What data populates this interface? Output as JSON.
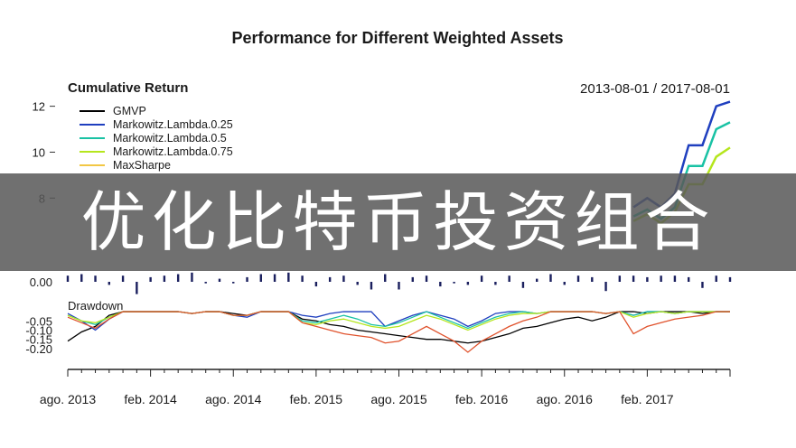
{
  "banner": {
    "text": "优化比特币投资组合"
  },
  "chart_data": {
    "title": "Performance for Different Weighted Assets",
    "date_range": "2013-08-01 / 2017-08-01",
    "x_axis_ticks": [
      "ago. 2013",
      "feb. 2014",
      "ago. 2014",
      "feb. 2015",
      "ago. 2015",
      "feb. 2016",
      "ago. 2016",
      "feb. 2017"
    ],
    "x_tick_positions": [
      0,
      6,
      12,
      18,
      24,
      30,
      36,
      42
    ],
    "x_count": 49,
    "panels": [
      {
        "type": "line",
        "title": "Cumulative Return",
        "y_ticks": [
          8,
          10,
          12
        ],
        "ylim": [
          7.5,
          12.3
        ],
        "legend_placement": "top-left",
        "series": [
          {
            "name": "GMVP",
            "color": "#000000",
            "x": [],
            "values": []
          },
          {
            "name": "Markowitz.Lambda.0.25",
            "color": "#1f3fbf",
            "x": [
              41,
              42,
              43,
              44,
              45,
              46,
              47,
              48
            ],
            "values": [
              7.6,
              8.0,
              7.6,
              8.2,
              10.3,
              10.3,
              12.0,
              12.2
            ]
          },
          {
            "name": "Markowitz.Lambda.0.5",
            "color": "#19c2a4",
            "x": [
              41,
              42,
              43,
              44,
              45,
              46,
              47,
              48
            ],
            "values": [
              7.2,
              7.5,
              7.1,
              7.6,
              9.4,
              9.4,
              11.0,
              11.3
            ]
          },
          {
            "name": "Markowitz.Lambda.0.75",
            "color": "#b5e61d",
            "x": [
              41,
              42,
              43,
              44,
              45,
              46,
              47,
              48
            ],
            "values": [
              7.0,
              7.3,
              6.9,
              7.4,
              8.6,
              8.6,
              9.8,
              10.2
            ]
          },
          {
            "name": "MaxSharpe",
            "color": "#f2c744",
            "x": [],
            "values": []
          }
        ]
      },
      {
        "type": "bar",
        "y_ticks": [
          0.0
        ],
        "y_tick_labels": [
          "0.00"
        ],
        "ylim": [
          -0.1,
          0.1
        ],
        "values": [
          0.04,
          0.05,
          0.04,
          -0.02,
          0.04,
          -0.08,
          0.03,
          0.04,
          0.05,
          0.06,
          -0.01,
          0.02,
          -0.01,
          0.03,
          0.05,
          0.05,
          0.06,
          0.04,
          -0.03,
          0.03,
          0.04,
          -0.02,
          -0.05,
          0.05,
          -0.05,
          0.03,
          0.04,
          -0.03,
          -0.01,
          -0.02,
          0.04,
          -0.02,
          0.04,
          -0.04,
          0.02,
          0.05,
          -0.02,
          0.04,
          0.03,
          -0.06,
          0.04,
          0.04,
          0.03,
          0.04,
          0.04,
          0.03,
          -0.04,
          0.04,
          0.03
        ]
      },
      {
        "type": "line",
        "title": "Drawdown",
        "y_ticks": [
          -0.05,
          -0.1,
          -0.15,
          -0.2
        ],
        "y_tick_labels": [
          "-0.05",
          "-0.10",
          "-0.15",
          "-0.20"
        ],
        "ylim": [
          -0.23,
          0.01
        ],
        "series": [
          {
            "name": "GMVP",
            "color": "#000000",
            "values": [
              -0.16,
              -0.11,
              -0.08,
              -0.02,
              0,
              0,
              0,
              0,
              0,
              -0.01,
              0,
              0,
              -0.01,
              -0.02,
              0,
              0,
              0,
              -0.04,
              -0.05,
              -0.07,
              -0.08,
              -0.1,
              -0.11,
              -0.12,
              -0.13,
              -0.14,
              -0.15,
              -0.15,
              -0.16,
              -0.17,
              -0.16,
              -0.14,
              -0.12,
              -0.09,
              -0.08,
              -0.06,
              -0.04,
              -0.03,
              -0.05,
              -0.03,
              0,
              0,
              -0.01,
              0,
              0,
              0,
              -0.01,
              0,
              0
            ]
          },
          {
            "name": "Markowitz.Lambda.0.25",
            "color": "#1f3fbf",
            "values": [
              -0.01,
              -0.05,
              -0.1,
              -0.04,
              0,
              0,
              0,
              0,
              0,
              -0.01,
              0,
              0,
              -0.02,
              -0.03,
              0,
              0,
              0,
              -0.02,
              -0.03,
              -0.01,
              0,
              0,
              0,
              -0.08,
              -0.05,
              -0.02,
              0,
              -0.02,
              -0.04,
              -0.08,
              -0.05,
              -0.01,
              0,
              0,
              -0.01,
              0,
              0,
              0,
              0,
              -0.01,
              0,
              -0.02,
              0,
              0,
              -0.01,
              0,
              0,
              0,
              0
            ]
          },
          {
            "name": "Markowitz.Lambda.0.5",
            "color": "#19c2a4",
            "values": [
              -0.02,
              -0.05,
              -0.07,
              -0.03,
              0,
              0,
              0,
              0,
              0,
              -0.01,
              0,
              0,
              -0.02,
              -0.02,
              0,
              0,
              0,
              -0.05,
              -0.06,
              -0.04,
              -0.02,
              -0.04,
              -0.07,
              -0.08,
              -0.06,
              -0.03,
              0,
              -0.03,
              -0.06,
              -0.09,
              -0.06,
              -0.03,
              -0.01,
              0,
              -0.01,
              0,
              0,
              0,
              0,
              -0.01,
              0,
              -0.02,
              0,
              0,
              -0.01,
              0,
              0,
              0,
              0
            ]
          },
          {
            "name": "Markowitz.Lambda.0.75",
            "color": "#b5e61d",
            "values": [
              -0.02,
              -0.05,
              -0.06,
              -0.03,
              0,
              0,
              0,
              0,
              0,
              -0.01,
              0,
              0,
              -0.02,
              -0.02,
              0,
              0,
              0,
              -0.06,
              -0.07,
              -0.05,
              -0.04,
              -0.06,
              -0.08,
              -0.09,
              -0.08,
              -0.05,
              -0.02,
              -0.04,
              -0.07,
              -0.1,
              -0.07,
              -0.04,
              -0.02,
              -0.01,
              -0.01,
              0,
              0,
              0,
              0,
              -0.01,
              0,
              -0.03,
              -0.01,
              0,
              -0.01,
              0,
              0,
              0,
              0
            ]
          },
          {
            "name": "MaxSharpe",
            "color": "#e0522c",
            "values": [
              -0.03,
              -0.06,
              -0.09,
              -0.04,
              0,
              0,
              0,
              0,
              0,
              -0.01,
              0,
              0,
              -0.02,
              -0.02,
              0,
              0,
              0,
              -0.06,
              -0.08,
              -0.1,
              -0.12,
              -0.13,
              -0.14,
              -0.17,
              -0.16,
              -0.12,
              -0.08,
              -0.12,
              -0.16,
              -0.22,
              -0.16,
              -0.12,
              -0.08,
              -0.05,
              -0.03,
              0,
              0,
              0,
              0,
              -0.01,
              0,
              -0.12,
              -0.08,
              -0.06,
              -0.04,
              -0.03,
              -0.02,
              0,
              0
            ]
          }
        ]
      }
    ]
  }
}
